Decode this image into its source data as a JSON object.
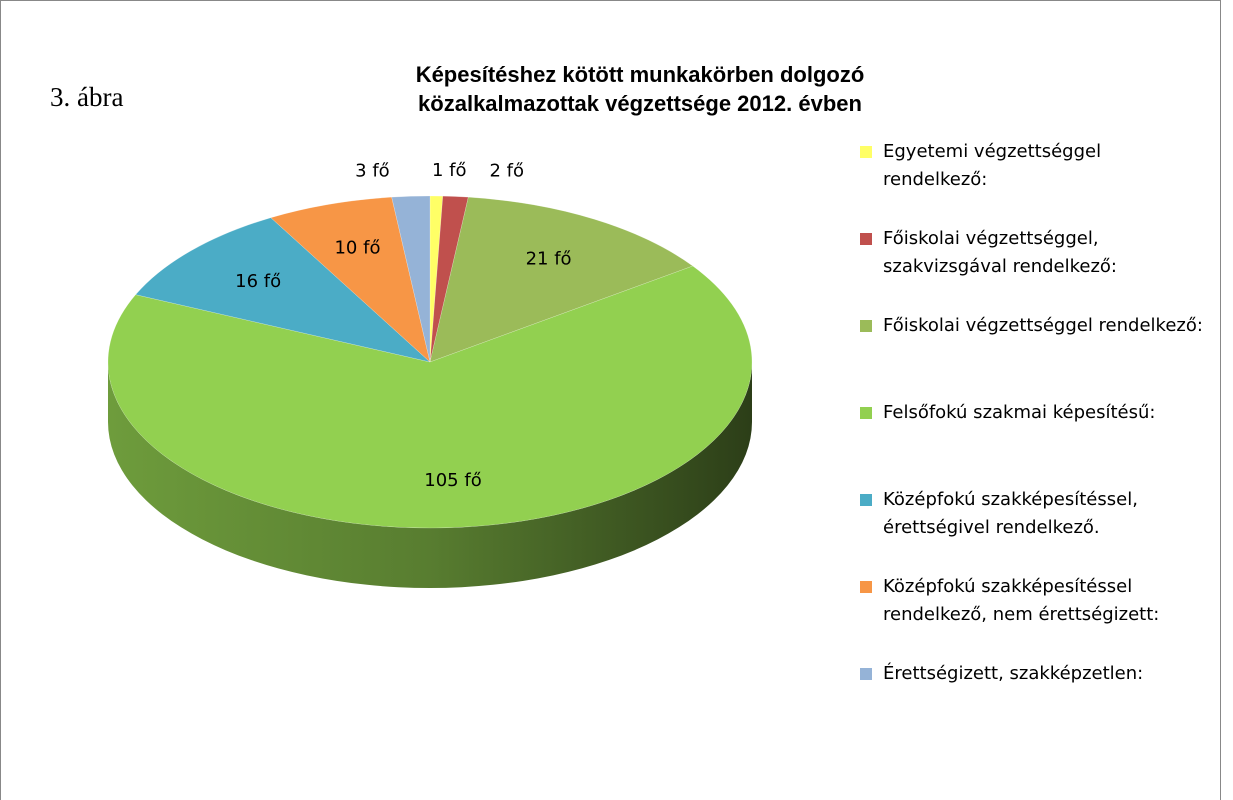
{
  "chart_data": {
    "type": "pie3d",
    "annotation": "3. ábra",
    "title": "Képesítéshez kötött munkakörben dolgozó közalkalmazottak végzettsége 2012. évben",
    "categories": [
      "Egyetemi végzettséggel rendelkező:",
      "Főiskolai végzettséggel, szakvizsgával rendelkező:",
      "Főiskolai végzettséggel rendelkező:",
      "Felsőfokú szakmai képesítésű:",
      "Középfokú szakképesítéssel, érettségivel rendelkező.",
      "Középfokú szakképesítéssel rendelkező, nem érettségizett:",
      "Érettségizett, szakképzetlen:"
    ],
    "values": [
      1,
      2,
      21,
      105,
      16,
      10,
      3
    ],
    "value_labels": [
      "1 fő",
      "2 fő",
      "21 fő",
      "105 fő",
      "16 fő",
      "10 fő",
      "3 fő"
    ],
    "colors": [
      "#ffff66",
      "#c0504d",
      "#9bbb59",
      "#92d050",
      "#4bacc6",
      "#f79646",
      "#95b3d7"
    ],
    "legend": "right"
  }
}
